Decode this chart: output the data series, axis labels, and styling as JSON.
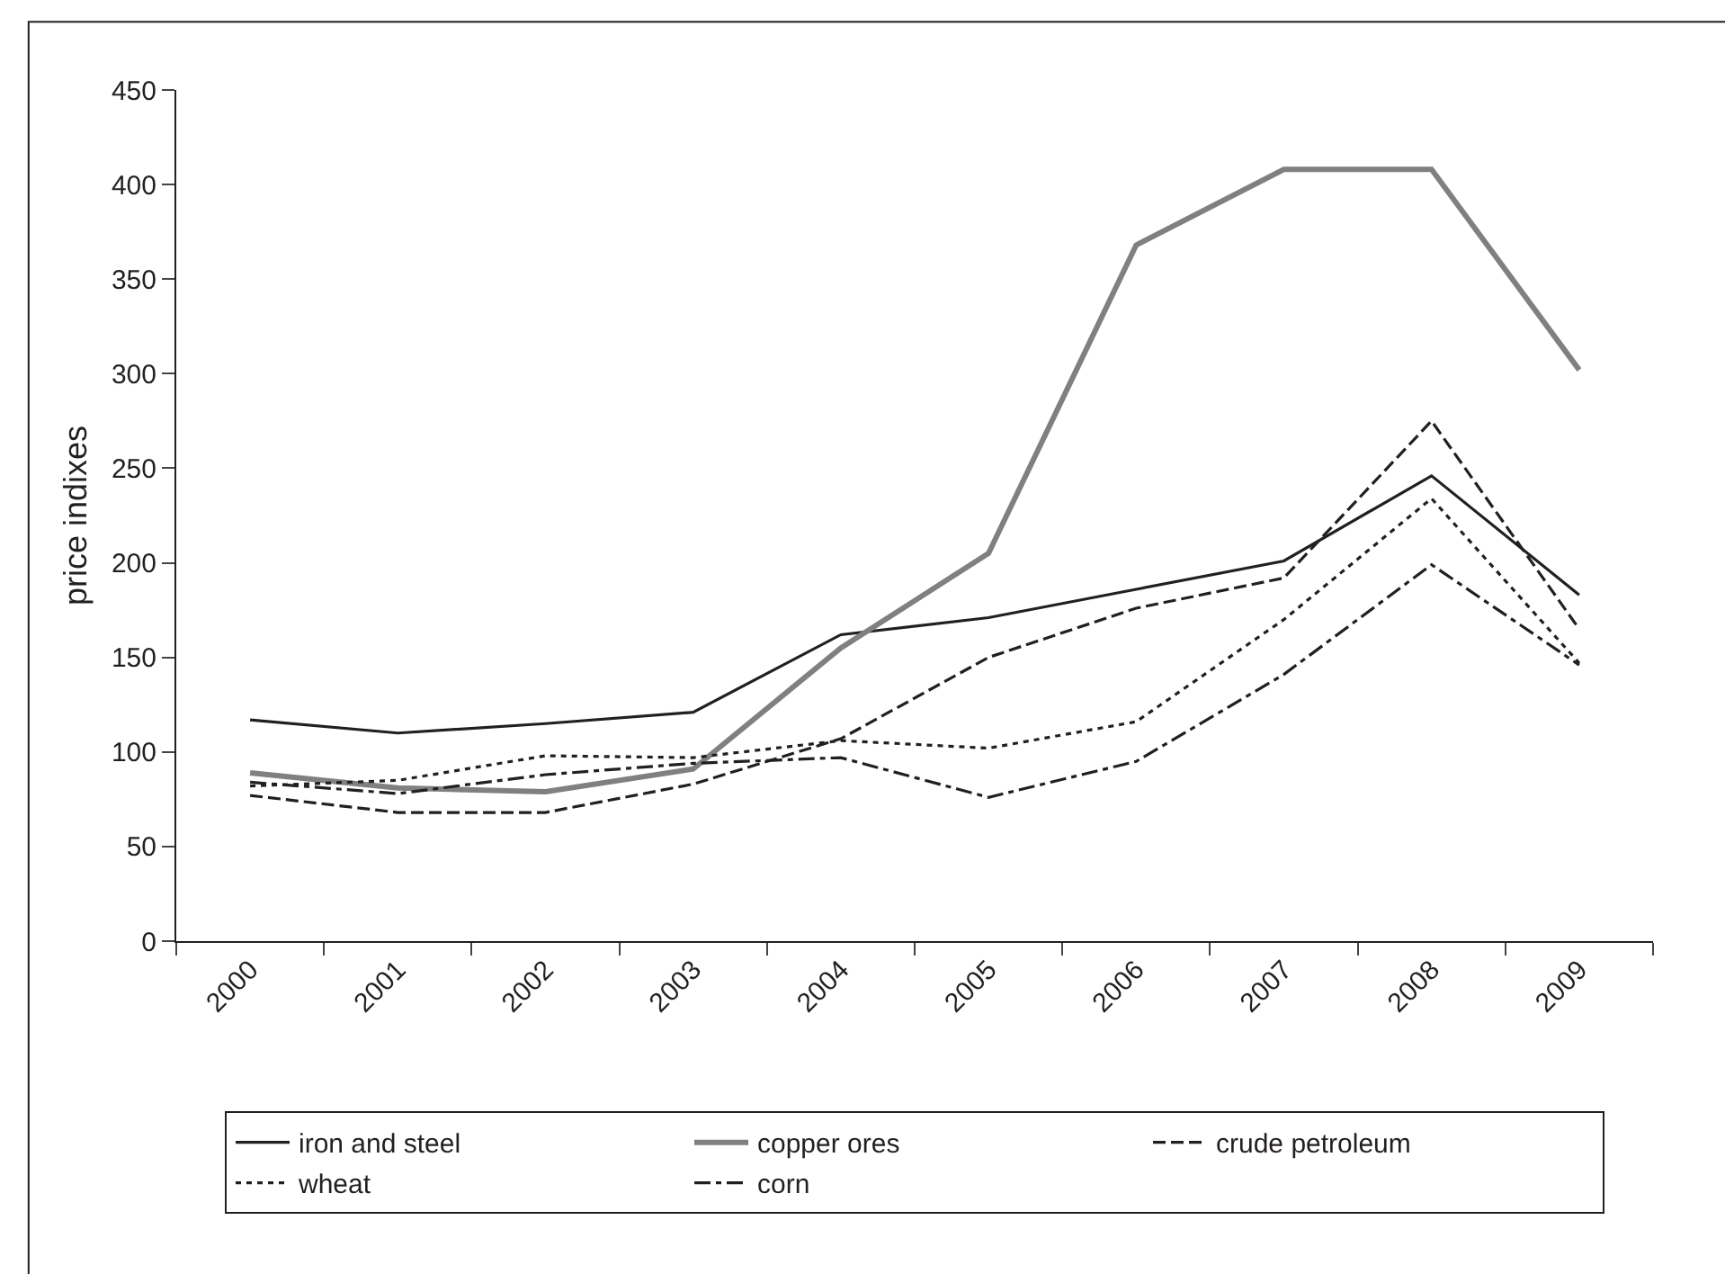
{
  "chart_data": {
    "type": "line",
    "ylabel": "price indixes",
    "categories": [
      "2000",
      "2001",
      "2002",
      "2003",
      "2004",
      "2005",
      "2006",
      "2007",
      "2008",
      "2009"
    ],
    "ylim": [
      0,
      450
    ],
    "yticks": [
      0,
      50,
      100,
      150,
      200,
      250,
      300,
      350,
      400,
      450
    ],
    "grid": false,
    "legend": "bottom",
    "marker": "none",
    "series": [
      {
        "name": "iron and steel",
        "color": "#231f20",
        "line_style": "solid",
        "values": [
          117,
          110,
          115,
          121,
          162,
          171,
          186,
          201,
          246,
          183
        ]
      },
      {
        "name": "copper ores",
        "color": "#808080",
        "line_style": "solid",
        "values": [
          89,
          81,
          79,
          91,
          155,
          205,
          368,
          408,
          408,
          302
        ]
      },
      {
        "name": "crude petroleum",
        "color": "#231f20",
        "line_style": "dashed",
        "values": [
          77,
          68,
          68,
          83,
          107,
          150,
          176,
          192,
          275,
          165
        ]
      },
      {
        "name": "wheat",
        "color": "#231f20",
        "line_style": "dotted",
        "values": [
          82,
          85,
          98,
          97,
          106,
          102,
          116,
          170,
          234,
          147
        ]
      },
      {
        "name": "corn",
        "color": "#231f20",
        "line_style": "dashdot",
        "values": [
          84,
          78,
          88,
          94,
          97,
          76,
          95,
          141,
          199,
          146
        ]
      }
    ]
  }
}
